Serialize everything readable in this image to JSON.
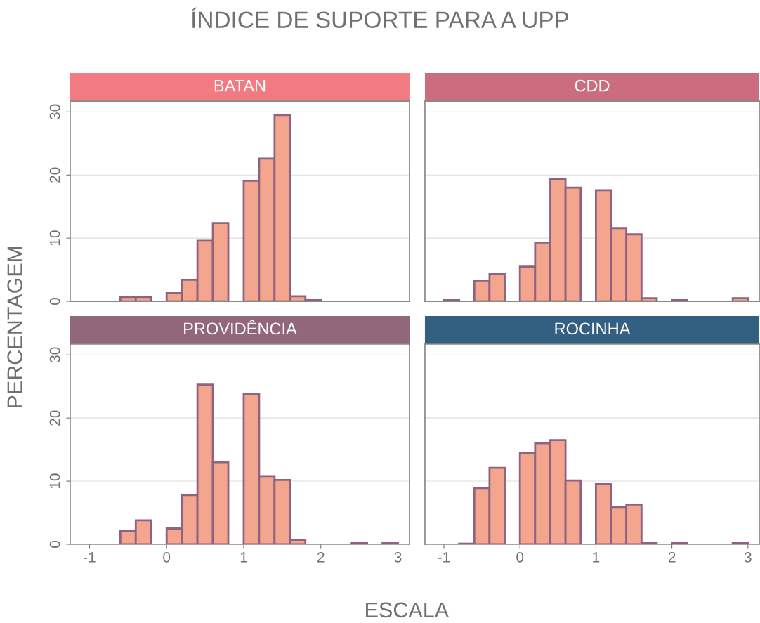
{
  "chart_data": [
    {
      "type": "histogram",
      "title": "BATAN",
      "annotations": [
        "ÍNDICE DE SUPORTE PARA A UPP"
      ],
      "ylabel": "PERCENTAGEM",
      "bins": [
        -1.0,
        -0.8,
        -0.6,
        -0.4,
        -0.2,
        0.0,
        0.2,
        0.4,
        0.6,
        0.8,
        1.0,
        1.2,
        1.4,
        1.6,
        1.8,
        2.0,
        2.2,
        2.4,
        2.6,
        2.8,
        3.0
      ],
      "series": [
        {
          "color": "#f4a58e",
          "values": [
            0,
            0,
            0.7,
            0.7,
            0,
            1.3,
            3.4,
            9.7,
            12.4,
            0,
            19.1,
            22.6,
            29.5,
            0.8,
            0.3,
            0,
            0,
            0,
            0,
            0
          ]
        }
      ],
      "xlim": [
        -1.25,
        3.15
      ],
      "xticks": [
        -1,
        0,
        1,
        2,
        3
      ],
      "ylim": [
        0,
        31.7
      ],
      "yticks": [
        0,
        10,
        20,
        30
      ],
      "grid": "y",
      "tick_labels": "y"
    },
    {
      "type": "histogram",
      "title": "CDD",
      "bins": [
        -1.0,
        -0.8,
        -0.6,
        -0.4,
        -0.2,
        0.0,
        0.2,
        0.4,
        0.6,
        0.8,
        1.0,
        1.2,
        1.4,
        1.6,
        1.8,
        2.0,
        2.2,
        2.4,
        2.6,
        2.8,
        3.0
      ],
      "series": [
        {
          "color": "#f4a58e",
          "values": [
            0.2,
            0,
            3.3,
            4.3,
            0,
            5.5,
            9.3,
            19.4,
            18.0,
            0,
            17.6,
            11.6,
            10.6,
            0.5,
            0,
            0.3,
            0,
            0,
            0,
            0.5
          ]
        }
      ],
      "xlim": [
        -1.25,
        3.15
      ],
      "xticks": [
        -1,
        0,
        1,
        2,
        3
      ],
      "ylim": [
        0,
        31.7
      ],
      "yticks": [
        0,
        10,
        20,
        30
      ],
      "grid": "y",
      "tick_labels": false
    },
    {
      "type": "histogram",
      "title": "PROVIDÊNCIA",
      "xlabel": "ESCALA",
      "bins": [
        -1.0,
        -0.8,
        -0.6,
        -0.4,
        -0.2,
        0.0,
        0.2,
        0.4,
        0.6,
        0.8,
        1.0,
        1.2,
        1.4,
        1.6,
        1.8,
        2.0,
        2.2,
        2.4,
        2.6,
        2.8,
        3.0
      ],
      "series": [
        {
          "color": "#f4a58e",
          "values": [
            0,
            0,
            2.1,
            3.8,
            0,
            2.5,
            7.8,
            25.3,
            13.0,
            0,
            23.8,
            10.8,
            10.2,
            0.7,
            0,
            0,
            0,
            0.2,
            0,
            0.2
          ]
        }
      ],
      "xlim": [
        -1.25,
        3.15
      ],
      "xticks": [
        -1,
        0,
        1,
        2,
        3
      ],
      "ylim": [
        0,
        31.7
      ],
      "yticks": [
        0,
        10,
        20,
        30
      ],
      "grid": "y"
    },
    {
      "type": "histogram",
      "title": "ROCINHA",
      "bins": [
        -1.0,
        -0.8,
        -0.6,
        -0.4,
        -0.2,
        0.0,
        0.2,
        0.4,
        0.6,
        0.8,
        1.0,
        1.2,
        1.4,
        1.6,
        1.8,
        2.0,
        2.2,
        2.4,
        2.6,
        2.8,
        3.0
      ],
      "series": [
        {
          "color": "#f4a58e",
          "values": [
            0,
            0.1,
            8.9,
            12.1,
            0,
            14.5,
            16.0,
            16.5,
            10.1,
            0,
            9.6,
            5.9,
            6.3,
            0.2,
            0,
            0.2,
            0,
            0,
            0,
            0.2
          ]
        }
      ],
      "xlim": [
        -1.25,
        3.15
      ],
      "xticks": [
        -1,
        0,
        1,
        2,
        3
      ],
      "ylim": [
        0,
        31.7
      ],
      "yticks": [
        0,
        10,
        20,
        30
      ],
      "grid": "y",
      "tick_labels": "x"
    }
  ]
}
